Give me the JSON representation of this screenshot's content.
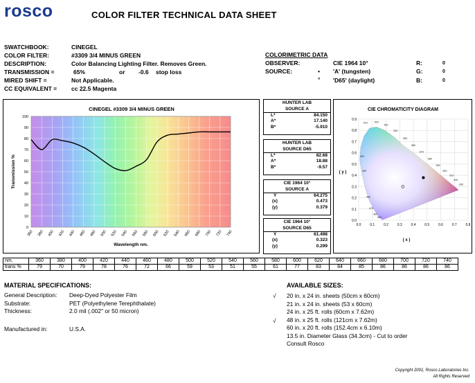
{
  "header": {
    "logo_text": "rosco",
    "title": "COLOR FILTER TECHNICAL DATA SHEET"
  },
  "info": {
    "swatchbook_label": "SWATCHBOOK:",
    "swatchbook": "CINEGEL",
    "filter_label": "COLOR FILTER:",
    "filter": "#3309 3/4 MINUS GREEN",
    "description_label": "DESCRIPTION:",
    "description": "Color Balancing Lighting Filter. Removes Green.",
    "transmission_label": "TRANSMISSION =",
    "transmission": "65%",
    "or": "or",
    "stop_loss": "-0.6",
    "stop_loss_label": "stop loss",
    "mired_label": "MIRED SHIFT =",
    "mired": "Not Applicable.",
    "cc_label": "CC EQUIVALENT =",
    "cc": "cc 22.5 Magenta"
  },
  "colorimetric": {
    "title": "COLORIMETRIC DATA",
    "observer_label": "OBSERVER:",
    "observer": "CIE 1964 10°",
    "source_label": "SOURCE:",
    "bullet": "•",
    "source_a": "'A' (tungsten)",
    "degree": "°",
    "source_d65": "'D65' (daylight)",
    "r_label": "R:",
    "r": "0",
    "g_label": "G:",
    "g": "0",
    "b_label": "B:",
    "b": "0"
  },
  "hunter_a": {
    "title1": "HUNTER LAB",
    "title2": "SOURCE A",
    "l_label": "L*",
    "l": "84.150",
    "a_label": "A*",
    "a": "17.140",
    "b_label": "B*",
    "b": "-5.910"
  },
  "hunter_d65": {
    "title1": "HUNTER LAB",
    "title2": "SOURCE D65",
    "l_label": "L*",
    "l": "82.68",
    "a_label": "A*",
    "a": "18.88",
    "b_label": "B*",
    "b": "-9.57"
  },
  "cie_a": {
    "title1": "CIE 1964 10°",
    "title2": "SOURCE A",
    "y_label": "Y",
    "y": "64.275",
    "x_label": "(x)",
    "x": "0.473",
    "yy_label": "(y)",
    "yy": "0.379"
  },
  "cie_d65": {
    "title1": "CIE 1964 10°",
    "title2": "SOURCE D65",
    "y_label": "Y",
    "y": "61.498",
    "x_label": "(x)",
    "x": "0.323",
    "yy_label": "(y)",
    "yy": "0.299"
  },
  "chart_data": [
    {
      "type": "line",
      "title": "CINEGEL #3309 3/4 MINUS GREEN",
      "xlabel": "Wavelength nm.",
      "ylabel": "Transmission %",
      "x": [
        360,
        380,
        400,
        420,
        440,
        460,
        480,
        500,
        520,
        540,
        560,
        580,
        600,
        620,
        640,
        660,
        680,
        700,
        720,
        740
      ],
      "series": [
        {
          "values": [
            79,
            70,
            79,
            78,
            76,
            72,
            66,
            59,
            53,
            51,
            55,
            61,
            77,
            83,
            84,
            85,
            86,
            86,
            86,
            86
          ]
        }
      ],
      "xlim": [
        360,
        740
      ],
      "ylim": [
        0,
        100
      ],
      "xticks": [
        360,
        380,
        400,
        420,
        440,
        460,
        480,
        500,
        520,
        540,
        560,
        580,
        600,
        620,
        640,
        660,
        680,
        700,
        720,
        740
      ],
      "yticks": [
        0,
        10,
        20,
        30,
        40,
        50,
        60,
        70,
        80,
        90,
        100
      ],
      "grid": true
    },
    {
      "type": "scatter",
      "title": "CIE CHROMATICITY DIAGRAM",
      "xlabel": "( x )",
      "ylabel": "( y )",
      "xlim": [
        0,
        0.8
      ],
      "ylim": [
        0,
        0.9
      ],
      "xticks": [
        "0.0",
        "0.1",
        "0.2",
        "0.3",
        "0.4",
        "0.5",
        "0.6",
        "0.7",
        "0.8"
      ],
      "yticks": [
        "0.0",
        "0.1",
        "0.2",
        "0.3",
        "0.4",
        "0.5",
        "0.6",
        "0.7",
        "0.8",
        "0.9"
      ],
      "locus_labels": [
        "510",
        "520",
        "530",
        "540",
        "550",
        "560",
        "570",
        "580",
        "590",
        "600",
        "610",
        "620",
        "630",
        "500",
        "490",
        "480",
        "470",
        "460",
        "450"
      ],
      "points": [
        {
          "name": "Source A",
          "x": 0.473,
          "y": 0.379,
          "marker": "filled"
        },
        {
          "name": "Source D65",
          "x": 0.323,
          "y": 0.299,
          "marker": "open"
        }
      ]
    }
  ],
  "transmission_table": {
    "nm_label": "nm.",
    "trans_label": "trans %",
    "nm": [
      "360",
      "380",
      "400",
      "420",
      "440",
      "460",
      "480",
      "500",
      "520",
      "540",
      "560",
      "580",
      "600",
      "620",
      "640",
      "660",
      "680",
      "700",
      "720",
      "740"
    ],
    "trans": [
      "79",
      "70",
      "79",
      "78",
      "76",
      "72",
      "66",
      "59",
      "53",
      "51",
      "55",
      "61",
      "77",
      "83",
      "84",
      "85",
      "86",
      "86",
      "86",
      "86"
    ]
  },
  "material": {
    "title": "MATERIAL SPECIFICATIONS:",
    "gd_label": "General Description:",
    "gd": "Deep-Dyed Polyester Film",
    "sub_label": "Substrate:",
    "sub": "PET (Polyethylene Terephthalate)",
    "th_label": "Thickness:",
    "th": "2.0 mil (.002\" or 50 micron)",
    "mfg_label": "Manufactured in:",
    "mfg": "U.S.A."
  },
  "sizes": {
    "title": "AVAILABLE SIZES:",
    "check": "√",
    "items": [
      "20 in. x 24 in. sheets (50cm x 60cm)",
      "21 in. x 24 in. sheets (53 x 60cm)",
      "24 in. x 25 ft. rolls (60cm x 7.62m)",
      "48 in. x 25 ft. rolls (121cm x 7.62m)",
      "60 in. x 20 ft. rolls (152.4cm x 6.10m)",
      "13.5 in. Diameter Glass (34.3cm) - Cut to order",
      "Consult Rosco"
    ]
  },
  "footer": {
    "copyright": "Copyright 2001, Rosco Laboratories Inc.",
    "rights": "All Rights Reserved"
  }
}
